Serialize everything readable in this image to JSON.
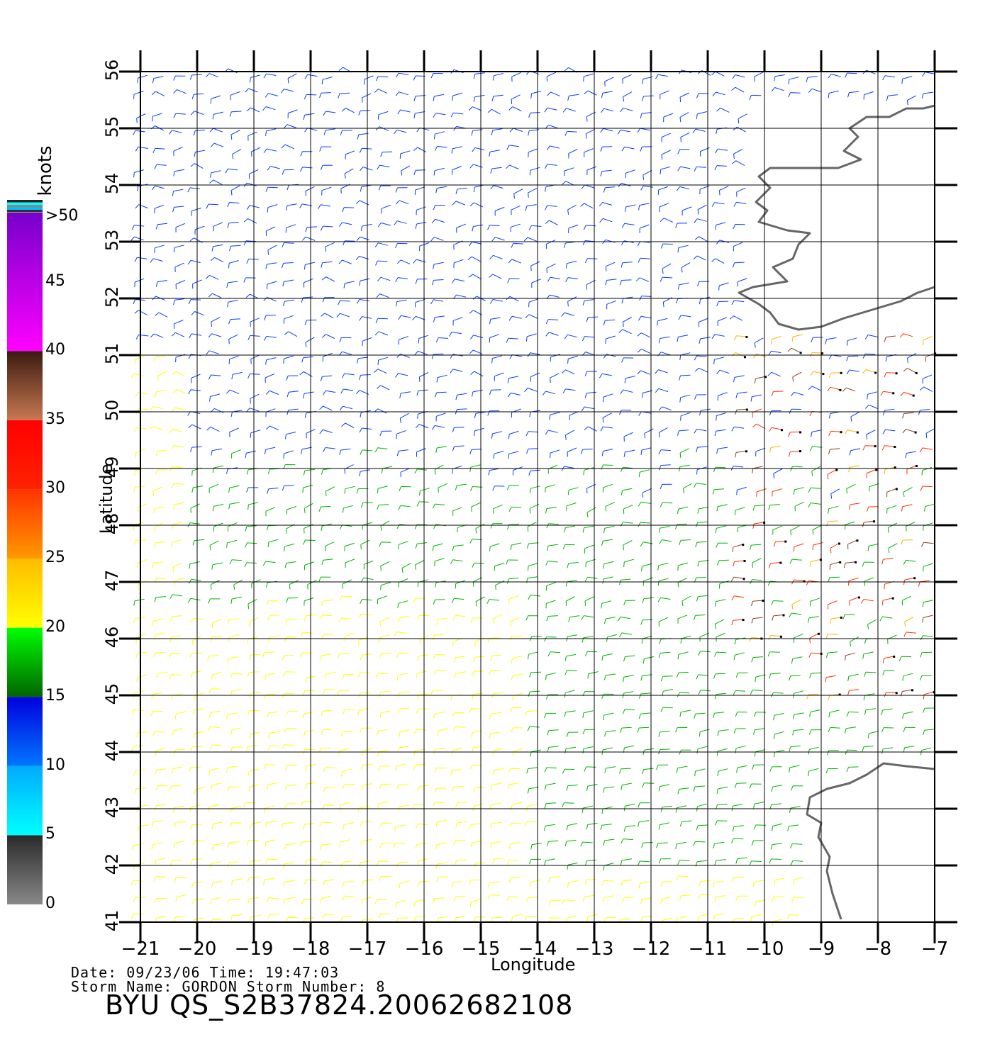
{
  "map": {
    "lon_range": [
      -21,
      -7
    ],
    "lat_range": [
      41,
      56
    ],
    "x_label": "Longitude",
    "y_label": "Latitude",
    "lon_ticks": [
      "−21",
      "−20",
      "−19",
      "−18",
      "−17",
      "−16",
      "−15",
      "−14",
      "−13",
      "−12",
      "−11",
      "−10",
      "−9",
      "−8",
      "−7"
    ],
    "lat_ticks": [
      "41",
      "42",
      "43",
      "44",
      "45",
      "46",
      "47",
      "48",
      "49",
      "50",
      "51",
      "52",
      "53",
      "54",
      "55",
      "56"
    ],
    "grid": true,
    "land_color": "#666666"
  },
  "legend": {
    "unit": "knots",
    "labels": [
      ">50",
      "45",
      "40",
      "35",
      "30",
      "25",
      "20",
      "15",
      "10",
      "5",
      "0"
    ],
    "bands": [
      {
        "from": 0,
        "to": 5,
        "colors": [
          "#888888",
          "#2a2a2a"
        ]
      },
      {
        "from": 5,
        "to": 10,
        "colors": [
          "#00ffff",
          "#00aaff"
        ]
      },
      {
        "from": 10,
        "to": 15,
        "colors": [
          "#0077ff",
          "#0000dd"
        ]
      },
      {
        "from": 15,
        "to": 20,
        "colors": [
          "#006400",
          "#00ff00"
        ]
      },
      {
        "from": 20,
        "to": 25,
        "colors": [
          "#ffff00",
          "#ffbb00"
        ]
      },
      {
        "from": 25,
        "to": 30,
        "colors": [
          "#ff9900",
          "#ff3300"
        ]
      },
      {
        "from": 30,
        "to": 35,
        "colors": [
          "#ff2200",
          "#ff0000"
        ]
      },
      {
        "from": 35,
        "to": 40,
        "colors": [
          "#c87850",
          "#3a1a10"
        ]
      },
      {
        "from": 40,
        "to": 50,
        "colors": [
          "#ff00ff",
          "#7700cc"
        ]
      }
    ]
  },
  "footer": {
    "date_time": "Date: 09/23/06   Time: 19:47:03",
    "storm": "Storm  Name: GORDON   Storm  Number: 8",
    "product_id": "BYU  QS_S2B37824.20062682108"
  }
}
